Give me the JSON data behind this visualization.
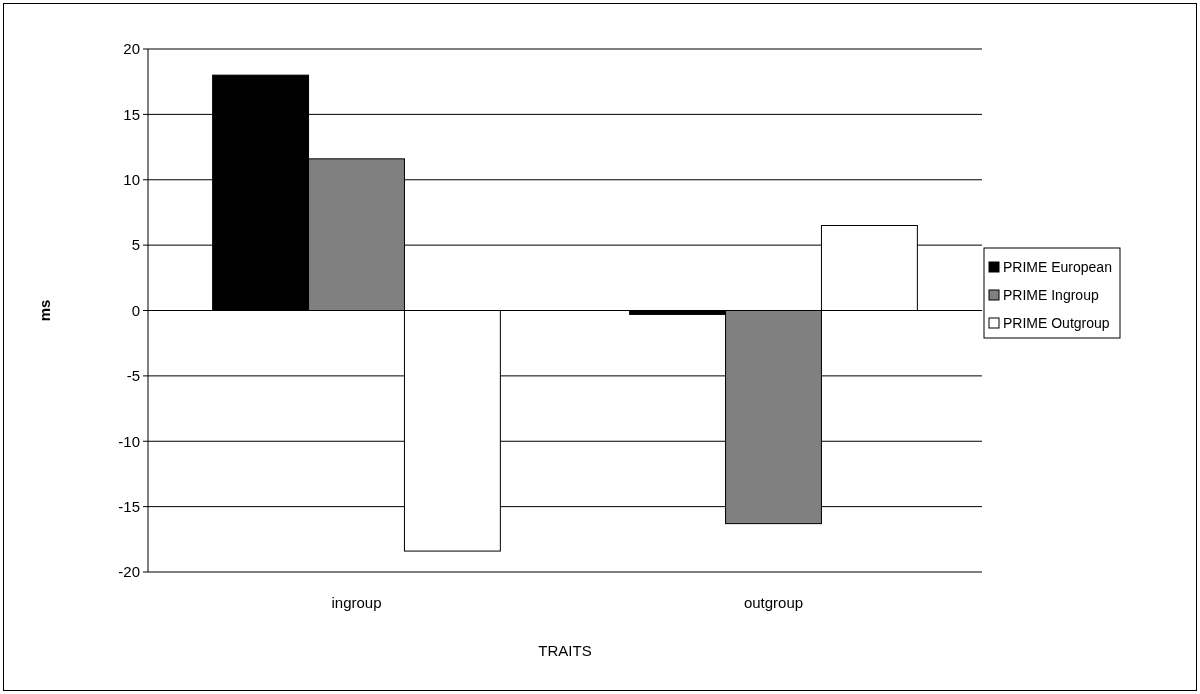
{
  "chart_data": {
    "type": "bar",
    "xlabel": "TRAITS",
    "ylabel": "ms",
    "categories": [
      "ingroup",
      "outgroup"
    ],
    "series": [
      {
        "name": "PRIME European",
        "color": "#000000",
        "values": [
          18.0,
          -0.3
        ]
      },
      {
        "name": "PRIME Ingroup",
        "color": "#808080",
        "values": [
          11.6,
          -16.3
        ]
      },
      {
        "name": "PRIME Outgroup",
        "color": "#ffffff",
        "values": [
          -18.4,
          6.5
        ]
      }
    ],
    "ylim": [
      -20,
      20
    ],
    "yticks": [
      -20,
      -15,
      -10,
      -5,
      0,
      5,
      10,
      15,
      20
    ],
    "grid": "y",
    "legend": "right"
  }
}
